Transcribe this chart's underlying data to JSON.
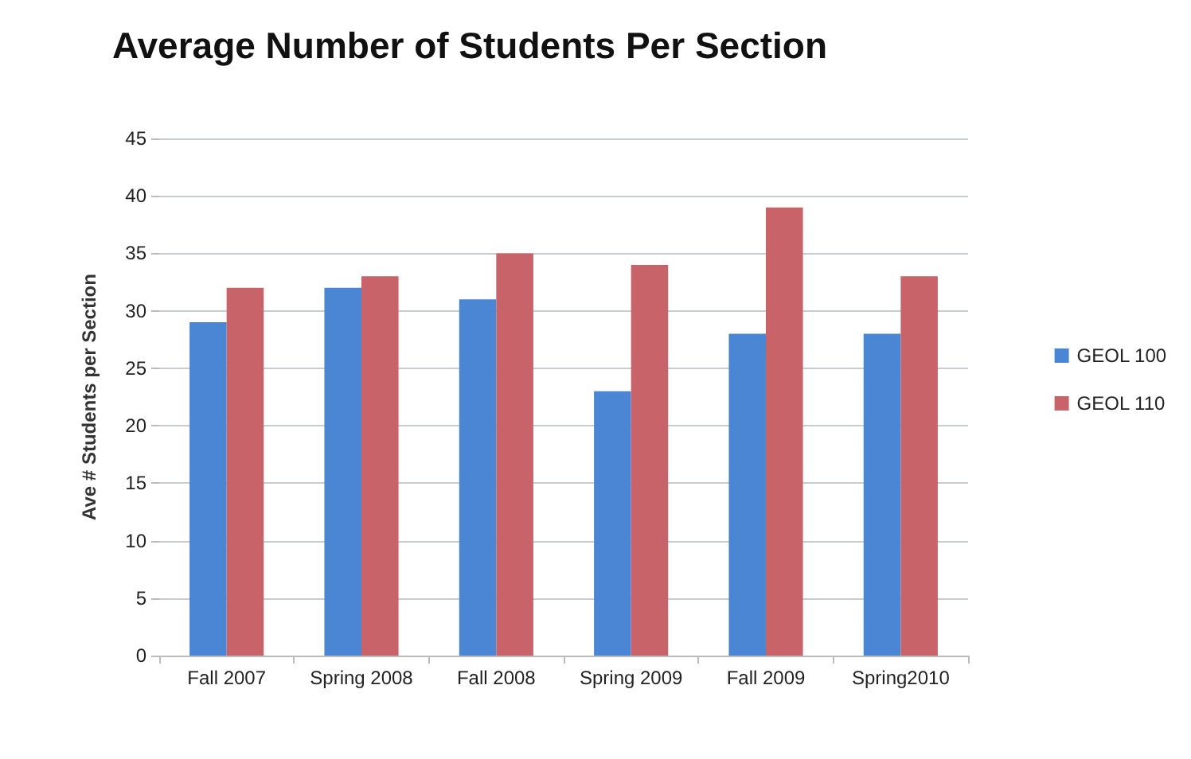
{
  "chart_data": {
    "type": "bar",
    "title": "Average Number of Students Per Section",
    "ylabel": "Ave # Students per Section",
    "categories": [
      "Fall 2007",
      "Spring 2008",
      "Fall 2008",
      "Spring 2009",
      "Fall 2009",
      "Spring2010"
    ],
    "series": [
      {
        "name": "GEOL 100",
        "color": "#4a86d4",
        "values": [
          29,
          32,
          31,
          23,
          28,
          28
        ]
      },
      {
        "name": "GEOL 110",
        "color": "#c9636a",
        "values": [
          32,
          33,
          35,
          34,
          39,
          33
        ]
      }
    ],
    "ylim": [
      0,
      45
    ],
    "yticks": [
      0,
      5,
      10,
      15,
      20,
      25,
      30,
      35,
      40,
      45
    ],
    "grid": "y",
    "legend": "right"
  }
}
